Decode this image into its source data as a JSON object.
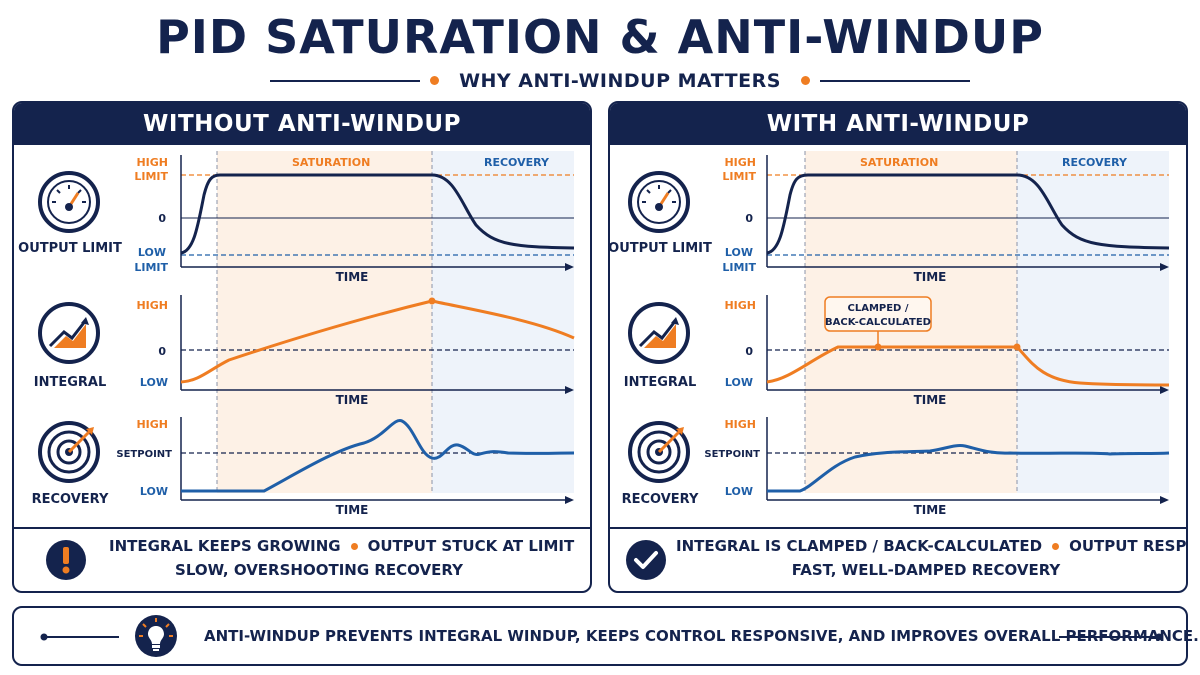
{
  "title": "PID SATURATION & ANTI-WINDUP",
  "subtitle": "WHY ANTI-WINDUP MATTERS",
  "colors": {
    "navy": "#14234d",
    "orange": "#ef7d22",
    "blue": "#1f5fa8",
    "sat_bg": "#fdf1e6",
    "rec_bg": "#eef3fa"
  },
  "panels": [
    {
      "heading": "WITHOUT ANTI-WINDUP",
      "zones": {
        "saturation": "SATURATION",
        "recovery": "RECOVERY"
      },
      "rows": [
        {
          "label": "OUTPUT LIMIT",
          "icon": "gauge-icon",
          "y_ticks": [
            "HIGH",
            "LIMIT",
            "0",
            "LOW",
            "LIMIT"
          ],
          "x_label": "TIME"
        },
        {
          "label": "INTEGRAL",
          "icon": "trend-chart-icon",
          "y_ticks": [
            "HIGH",
            "0",
            "LOW"
          ],
          "x_label": "TIME"
        },
        {
          "label": "RECOVERY",
          "icon": "target-icon",
          "y_ticks": [
            "HIGH",
            "SETPOINT",
            "LOW"
          ],
          "x_label": "TIME"
        }
      ],
      "footer_icon": "warning-icon",
      "footer_line1_a": "INTEGRAL KEEPS GROWING",
      "footer_line1_b": "OUTPUT STUCK AT LIMIT",
      "footer_line2": "SLOW, OVERSHOOTING RECOVERY"
    },
    {
      "heading": "WITH ANTI-WINDUP",
      "zones": {
        "saturation": "SATURATION",
        "recovery": "RECOVERY"
      },
      "rows": [
        {
          "label": "OUTPUT LIMIT",
          "icon": "gauge-icon",
          "y_ticks": [
            "HIGH",
            "LIMIT",
            "0",
            "LOW",
            "LIMIT"
          ],
          "x_label": "TIME"
        },
        {
          "label": "INTEGRAL",
          "icon": "trend-chart-icon",
          "y_ticks": [
            "HIGH",
            "0",
            "LOW"
          ],
          "x_label": "TIME",
          "callout": [
            "CLAMPED /",
            "BACK-CALCULATED"
          ]
        },
        {
          "label": "RECOVERY",
          "icon": "target-icon",
          "y_ticks": [
            "HIGH",
            "SETPOINT",
            "LOW"
          ],
          "x_label": "TIME"
        }
      ],
      "footer_icon": "check-icon",
      "footer_line1_a": "INTEGRAL IS CLAMPED / BACK-CALCULATED",
      "footer_line1_b": "OUTPUT RESPECTS LIMIT",
      "footer_line2": "FAST, WELL-DAMPED RECOVERY"
    }
  ],
  "bottom": {
    "icon": "lightbulb-icon",
    "text": "ANTI-WINDUP PREVENTS INTEGRAL WINDUP, KEEPS CONTROL RESPONSIVE, AND IMPROVES OVERALL PERFORMANCE."
  }
}
